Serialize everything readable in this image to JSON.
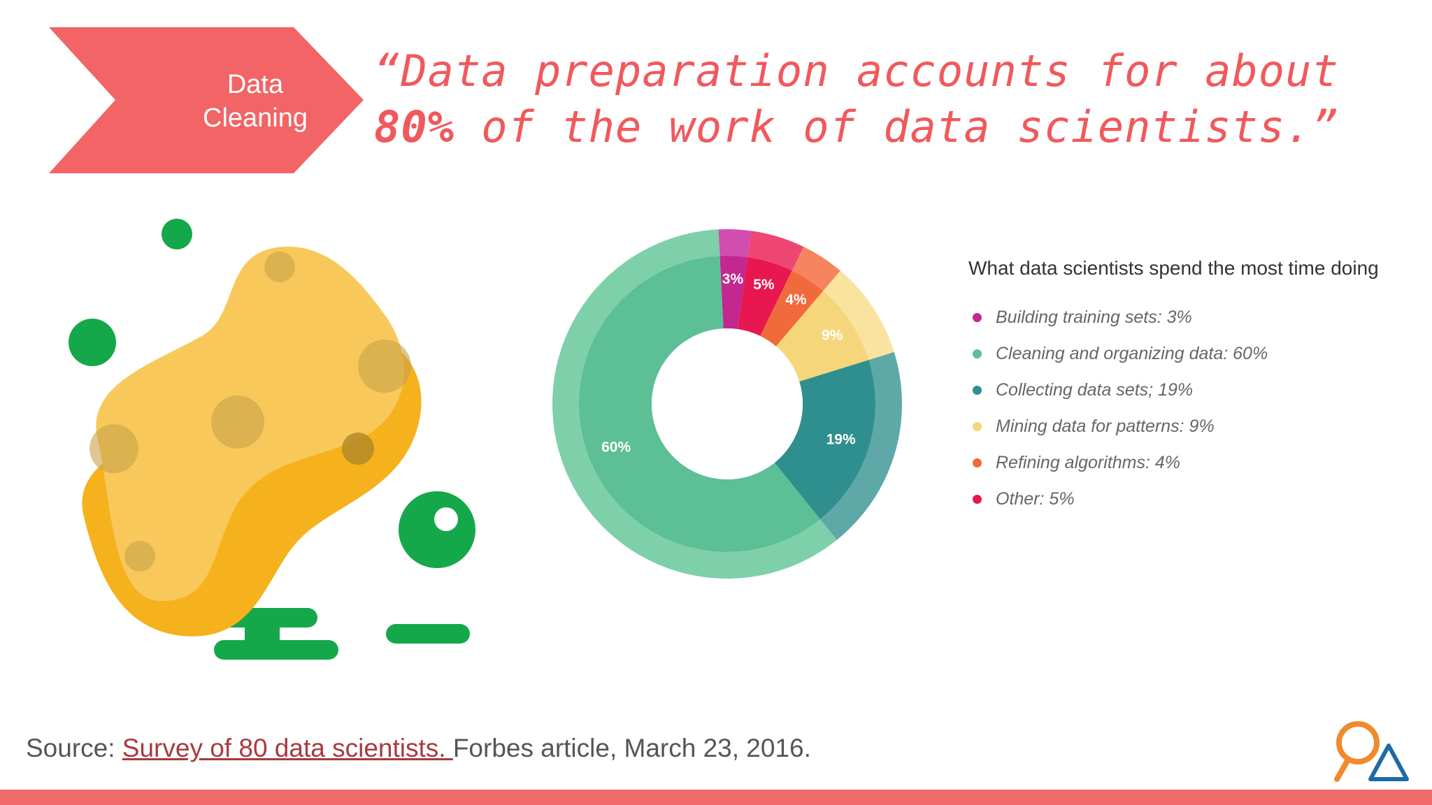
{
  "banner": {
    "line1": "Data",
    "line2": "Cleaning",
    "color": "#f26466"
  },
  "quote": {
    "before": "“Data preparation accounts for about ",
    "emphasis": "80%",
    "after": " of the work of data scientists.”"
  },
  "illustration": {
    "sponge_color": "#f8c95a",
    "sponge_shadow": "#f5b21c",
    "bubble_color": "#14a84a"
  },
  "chart_data": {
    "type": "pie",
    "title": "What data scientists spend the most time doing",
    "categories": [
      "Building training sets: 3%",
      "Cleaning and organizing data: 60%",
      "Collecting data sets; 19%",
      "Mining data for patterns: 9%",
      "Refining algorithms: 4%",
      "Other: 5%"
    ],
    "values": [
      3,
      60,
      19,
      9,
      4,
      5
    ],
    "slice_labels": [
      "3%",
      "60%",
      "19%",
      "9%",
      "4%",
      "5%"
    ],
    "colors": [
      "#c2288f",
      "#5cbf96",
      "#2f8f8e",
      "#f5d67a",
      "#f06a3b",
      "#e8174f"
    ],
    "outer_ring_colors": [
      "#d24db0",
      "#7dd0a9",
      "#5ea8a8",
      "#fae39e",
      "#f5845f",
      "#ee4673"
    ],
    "legend_position": "right",
    "donut": true
  },
  "source": {
    "prefix": "Source: ",
    "link_text": "Survey of 80 data scientists. ",
    "suffix": "Forbes article, March 23, 2016."
  },
  "logo": {
    "colors": [
      "#f08a2c",
      "#1f6aa5"
    ]
  },
  "footer_bar_color": "#f26b6b"
}
